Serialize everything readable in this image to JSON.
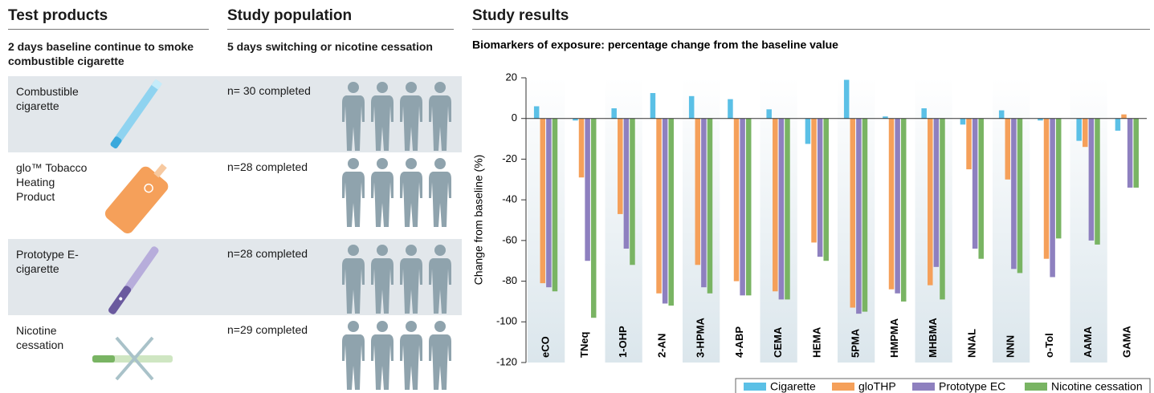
{
  "left": {
    "products_title": "Test products",
    "products_subtitle": "2 days baseline continue to smoke combustible cigarette",
    "population_title": "Study population",
    "population_subtitle": "5 days switching or nicotine cessation",
    "results_title": "Study results",
    "rows": [
      {
        "product": "Combustible cigarette",
        "population": "n= 30 completed"
      },
      {
        "product": "glo™ Tobacco Heating Product",
        "population": "n=28 completed"
      },
      {
        "product": "Prototype E-cigarette",
        "population": "n=28 completed"
      },
      {
        "product": "Nicotine cessation",
        "population": "n=29 completed"
      }
    ]
  },
  "chart_data": {
    "type": "bar",
    "title": "Biomarkers of exposure: percentage change from the baseline value",
    "y_label": "Change from baseline (%)",
    "categories": [
      "eCO",
      "TNeq",
      "1-OHP",
      "2-AN",
      "3-HPMA",
      "4-ABP",
      "CEMA",
      "HEMA",
      "5PMA",
      "HMPMA",
      "MHBMA",
      "NNAL",
      "NNN",
      "o-Tol",
      "AAMA",
      "GAMA"
    ],
    "series": [
      {
        "name": "Cigarette",
        "color": "#5bc0e6",
        "values": [
          6,
          -1,
          5,
          12.5,
          11,
          9.5,
          4.5,
          -12.5,
          19,
          1,
          5,
          -3,
          4,
          -1,
          -11,
          -6
        ]
      },
      {
        "name": "gloTHP",
        "color": "#f5a05a",
        "values": [
          -81,
          -29,
          -47,
          -86,
          -72,
          -80,
          -85,
          -61,
          -93,
          -84,
          -82,
          -25,
          -30,
          -69,
          -14,
          2
        ]
      },
      {
        "name": "Prototype EC",
        "color": "#8e80bf",
        "values": [
          -83,
          -70,
          -64,
          -91,
          -83,
          -87,
          -89,
          -68,
          -96,
          -86,
          -73,
          -64,
          -74,
          -78,
          -60,
          -34
        ]
      },
      {
        "name": "Nicotine cessation",
        "color": "#79b463",
        "values": [
          -85,
          -98,
          -72,
          -92,
          -86,
          -87,
          -89,
          -70,
          -95,
          -90,
          -89,
          -69,
          -76,
          -59,
          -62,
          -34
        ]
      }
    ],
    "ylim": [
      -120,
      20
    ],
    "yticks": [
      -120,
      -100,
      -80,
      -60,
      -40,
      -20,
      0,
      20
    ],
    "legend": "bottom-right"
  }
}
